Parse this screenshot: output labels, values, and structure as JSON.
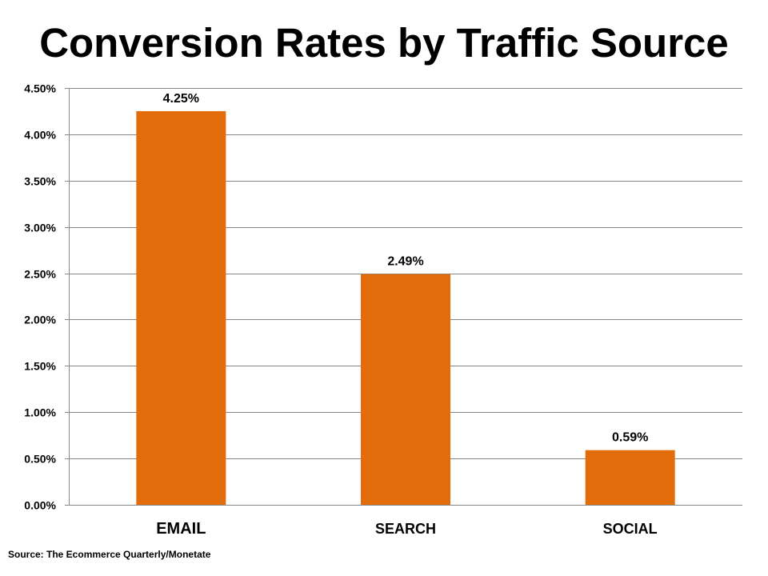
{
  "chart_data": {
    "type": "bar",
    "title": "Conversion Rates by Traffic Source",
    "categories": [
      "EMAIL",
      "SEARCH",
      "SOCIAL"
    ],
    "values": [
      4.25,
      2.49,
      0.59
    ],
    "data_labels": [
      "4.25%",
      "2.49%",
      "0.59%"
    ],
    "ylim": [
      0,
      4.5
    ],
    "yticks": [
      0,
      0.5,
      1.0,
      1.5,
      2.0,
      2.5,
      3.0,
      3.5,
      4.0,
      4.5
    ],
    "ytick_labels": [
      "0.00%",
      "0.50%",
      "1.00%",
      "1.50%",
      "2.00%",
      "2.50%",
      "3.00%",
      "3.50%",
      "4.00%",
      "4.50%"
    ],
    "xlabel": "",
    "ylabel": "",
    "grid": true,
    "legend": false,
    "bar_color": "#E36C0A",
    "gridline_color": "#868686",
    "source": "Source: The Ecommerce Quarterly/Monetate"
  }
}
